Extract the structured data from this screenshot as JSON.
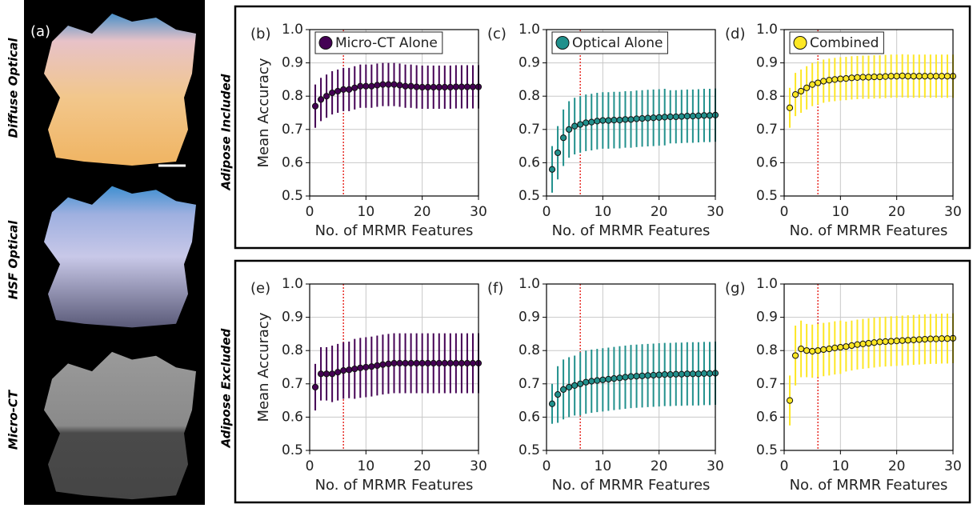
{
  "figure": {
    "panel_a_label": "(a)",
    "image_rows": [
      "Diffuse Optical",
      "HSF Optical",
      "Micro-CT"
    ],
    "row_labels": [
      "Adipose Included",
      "Adipose Excluded"
    ]
  },
  "chart_data": [
    {
      "type": "errorbar",
      "panel_label": "(b)",
      "ylabel": "Mean Accuracy",
      "xlabel": "No. of MRMR Features",
      "x": [
        1,
        2,
        3,
        4,
        5,
        6,
        7,
        8,
        9,
        10,
        11,
        12,
        13,
        14,
        15,
        16,
        17,
        18,
        19,
        20,
        21,
        22,
        23,
        24,
        25,
        26,
        27,
        28,
        29,
        30
      ],
      "series": [
        {
          "name": "Micro-CT Alone",
          "color": "#440154",
          "values": [
            0.77,
            0.79,
            0.8,
            0.81,
            0.815,
            0.82,
            0.82,
            0.825,
            0.83,
            0.83,
            0.83,
            0.833,
            0.835,
            0.835,
            0.835,
            0.833,
            0.83,
            0.83,
            0.828,
            0.827,
            0.827,
            0.827,
            0.827,
            0.827,
            0.827,
            0.828,
            0.828,
            0.828,
            0.828,
            0.828
          ],
          "errors": [
            0.065,
            0.065,
            0.065,
            0.065,
            0.065,
            0.065,
            0.065,
            0.065,
            0.065,
            0.065,
            0.065,
            0.065,
            0.065,
            0.065,
            0.065,
            0.065,
            0.065,
            0.065,
            0.065,
            0.065,
            0.065,
            0.065,
            0.065,
            0.065,
            0.065,
            0.065,
            0.065,
            0.065,
            0.065,
            0.065
          ]
        }
      ],
      "xlim": [
        0,
        30
      ],
      "ylim": [
        0.5,
        1.0
      ],
      "xticks": [
        0,
        10,
        20,
        30
      ],
      "yticks": [
        0.5,
        0.6,
        0.7,
        0.8,
        0.9,
        {
          "value": 1.0,
          "label": "1.0"
        }
      ],
      "grid": true,
      "legend": "upper left",
      "vline": 6,
      "vline_color": "#e8302a"
    },
    {
      "type": "errorbar",
      "panel_label": "(c)",
      "xlabel": "No. of MRMR Features",
      "x": [
        1,
        2,
        3,
        4,
        5,
        6,
        7,
        8,
        9,
        10,
        11,
        12,
        13,
        14,
        15,
        16,
        17,
        18,
        19,
        20,
        21,
        22,
        23,
        24,
        25,
        26,
        27,
        28,
        29,
        30
      ],
      "series": [
        {
          "name": "Optical Alone",
          "color": "#21908c",
          "values": [
            0.58,
            0.63,
            0.675,
            0.7,
            0.71,
            0.715,
            0.72,
            0.722,
            0.725,
            0.727,
            0.727,
            0.728,
            0.728,
            0.73,
            0.73,
            0.732,
            0.733,
            0.734,
            0.735,
            0.736,
            0.737,
            0.738,
            0.738,
            0.739,
            0.74,
            0.74,
            0.741,
            0.742,
            0.742,
            0.743
          ],
          "errors": [
            0.07,
            0.08,
            0.085,
            0.085,
            0.085,
            0.085,
            0.085,
            0.085,
            0.085,
            0.085,
            0.085,
            0.085,
            0.085,
            0.085,
            0.085,
            0.085,
            0.085,
            0.085,
            0.085,
            0.085,
            0.085,
            0.08,
            0.08,
            0.08,
            0.08,
            0.08,
            0.08,
            0.08,
            0.08,
            0.08
          ]
        }
      ],
      "xlim": [
        0,
        30
      ],
      "ylim": [
        0.5,
        1.0
      ],
      "xticks": [
        0,
        10,
        20,
        30
      ],
      "yticks": [
        0.5,
        0.6,
        0.7,
        0.8,
        0.9,
        {
          "value": 1.0,
          "label": "1.0"
        }
      ],
      "grid": true,
      "legend": "upper left",
      "vline": 6,
      "vline_color": "#e8302a"
    },
    {
      "type": "errorbar",
      "panel_label": "(d)",
      "xlabel": "No. of MRMR Features",
      "x": [
        1,
        2,
        3,
        4,
        5,
        6,
        7,
        8,
        9,
        10,
        11,
        12,
        13,
        14,
        15,
        16,
        17,
        18,
        19,
        20,
        21,
        22,
        23,
        24,
        25,
        26,
        27,
        28,
        29,
        30
      ],
      "series": [
        {
          "name": "Combined",
          "color": "#fde725",
          "values": [
            0.765,
            0.805,
            0.815,
            0.825,
            0.835,
            0.84,
            0.845,
            0.848,
            0.85,
            0.852,
            0.853,
            0.855,
            0.856,
            0.857,
            0.857,
            0.858,
            0.858,
            0.859,
            0.86,
            0.86,
            0.861,
            0.86,
            0.86,
            0.86,
            0.86,
            0.86,
            0.86,
            0.86,
            0.86,
            0.86
          ],
          "errors": [
            0.06,
            0.065,
            0.065,
            0.065,
            0.065,
            0.065,
            0.065,
            0.065,
            0.065,
            0.065,
            0.065,
            0.065,
            0.065,
            0.065,
            0.065,
            0.065,
            0.065,
            0.065,
            0.065,
            0.065,
            0.065,
            0.065,
            0.065,
            0.065,
            0.065,
            0.065,
            0.065,
            0.065,
            0.065,
            0.065
          ]
        }
      ],
      "xlim": [
        0,
        30
      ],
      "ylim": [
        0.5,
        1.0
      ],
      "xticks": [
        0,
        10,
        20,
        30
      ],
      "yticks": [
        0.5,
        0.6,
        0.7,
        0.8,
        0.9,
        {
          "value": 1.0,
          "label": "1.0"
        }
      ],
      "grid": true,
      "legend": "upper left",
      "vline": 6,
      "vline_color": "#e8302a"
    },
    {
      "type": "errorbar",
      "panel_label": "(e)",
      "ylabel": "Mean Accuracy",
      "xlabel": "No. of MRMR Features",
      "x": [
        1,
        2,
        3,
        4,
        5,
        6,
        7,
        8,
        9,
        10,
        11,
        12,
        13,
        14,
        15,
        16,
        17,
        18,
        19,
        20,
        21,
        22,
        23,
        24,
        25,
        26,
        27,
        28,
        29,
        30
      ],
      "series": [
        {
          "color": "#440154",
          "values": [
            0.69,
            0.73,
            0.73,
            0.73,
            0.735,
            0.74,
            0.742,
            0.745,
            0.748,
            0.75,
            0.752,
            0.755,
            0.758,
            0.76,
            0.762,
            0.762,
            0.762,
            0.762,
            0.762,
            0.762,
            0.762,
            0.762,
            0.762,
            0.762,
            0.762,
            0.762,
            0.762,
            0.762,
            0.762,
            0.762
          ],
          "errors": [
            0.07,
            0.08,
            0.08,
            0.085,
            0.085,
            0.085,
            0.085,
            0.09,
            0.09,
            0.09,
            0.09,
            0.09,
            0.09,
            0.09,
            0.09,
            0.09,
            0.09,
            0.09,
            0.09,
            0.09,
            0.09,
            0.09,
            0.09,
            0.09,
            0.09,
            0.09,
            0.09,
            0.09,
            0.09,
            0.09
          ]
        }
      ],
      "xlim": [
        0,
        30
      ],
      "ylim": [
        0.5,
        1.0
      ],
      "xticks": [
        0,
        10,
        20,
        30
      ],
      "yticks": [
        0.5,
        0.6,
        0.7,
        0.8,
        0.9,
        {
          "value": 1.0,
          "label": "1.0"
        }
      ],
      "grid": true,
      "vline": 6,
      "vline_color": "#e8302a"
    },
    {
      "type": "errorbar",
      "panel_label": "(f)",
      "xlabel": "No. of MRMR Features",
      "x": [
        1,
        2,
        3,
        4,
        5,
        6,
        7,
        8,
        9,
        10,
        11,
        12,
        13,
        14,
        15,
        16,
        17,
        18,
        19,
        20,
        21,
        22,
        23,
        24,
        25,
        26,
        27,
        28,
        29,
        30
      ],
      "series": [
        {
          "color": "#21908c",
          "values": [
            0.64,
            0.668,
            0.683,
            0.69,
            0.695,
            0.7,
            0.705,
            0.708,
            0.71,
            0.712,
            0.714,
            0.716,
            0.718,
            0.72,
            0.722,
            0.723,
            0.724,
            0.725,
            0.726,
            0.727,
            0.728,
            0.728,
            0.729,
            0.729,
            0.73,
            0.73,
            0.73,
            0.731,
            0.731,
            0.732
          ],
          "errors": [
            0.06,
            0.085,
            0.09,
            0.09,
            0.09,
            0.095,
            0.095,
            0.095,
            0.095,
            0.095,
            0.095,
            0.095,
            0.095,
            0.095,
            0.095,
            0.095,
            0.095,
            0.095,
            0.095,
            0.095,
            0.095,
            0.095,
            0.095,
            0.095,
            0.095,
            0.095,
            0.095,
            0.095,
            0.095,
            0.095
          ]
        }
      ],
      "xlim": [
        0,
        30
      ],
      "ylim": [
        0.5,
        1.0
      ],
      "xticks": [
        0,
        10,
        20,
        30
      ],
      "yticks": [
        0.5,
        0.6,
        0.7,
        0.8,
        0.9,
        {
          "value": 1.0,
          "label": "1.0"
        }
      ],
      "grid": true,
      "vline": 6,
      "vline_color": "#e8302a"
    },
    {
      "type": "errorbar",
      "panel_label": "(g)",
      "xlabel": "No. of MRMR Features",
      "x": [
        1,
        2,
        3,
        4,
        5,
        6,
        7,
        8,
        9,
        10,
        11,
        12,
        13,
        14,
        15,
        16,
        17,
        18,
        19,
        20,
        21,
        22,
        23,
        24,
        25,
        26,
        27,
        28,
        29,
        30
      ],
      "series": [
        {
          "color": "#fde725",
          "values": [
            0.65,
            0.785,
            0.805,
            0.8,
            0.798,
            0.8,
            0.803,
            0.805,
            0.808,
            0.81,
            0.812,
            0.815,
            0.818,
            0.82,
            0.822,
            0.824,
            0.826,
            0.827,
            0.828,
            0.829,
            0.83,
            0.831,
            0.832,
            0.833,
            0.834,
            0.835,
            0.835,
            0.836,
            0.836,
            0.837
          ],
          "errors": [
            0.075,
            0.09,
            0.085,
            0.08,
            0.08,
            0.08,
            0.08,
            0.08,
            0.08,
            0.08,
            0.075,
            0.075,
            0.075,
            0.075,
            0.075,
            0.075,
            0.075,
            0.075,
            0.075,
            0.075,
            0.075,
            0.075,
            0.075,
            0.075,
            0.075,
            0.075,
            0.075,
            0.075,
            0.075,
            0.075
          ]
        }
      ],
      "xlim": [
        0,
        30
      ],
      "ylim": [
        0.5,
        1.0
      ],
      "xticks": [
        0,
        10,
        20,
        30
      ],
      "yticks": [
        0.5,
        0.6,
        0.7,
        0.8,
        0.9,
        {
          "value": 1.0,
          "label": "1.0"
        }
      ],
      "grid": true,
      "vline": 6,
      "vline_color": "#e8302a"
    }
  ]
}
